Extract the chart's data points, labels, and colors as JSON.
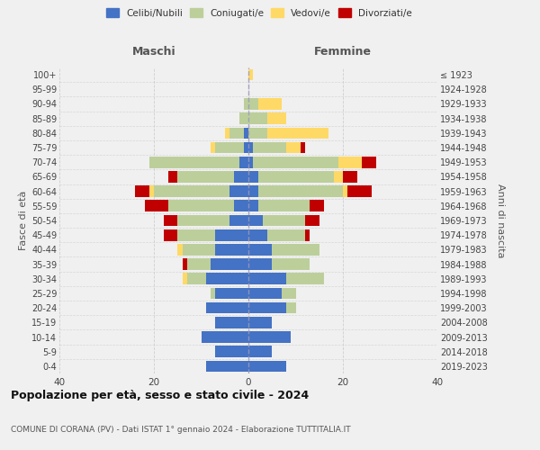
{
  "age_groups": [
    "0-4",
    "5-9",
    "10-14",
    "15-19",
    "20-24",
    "25-29",
    "30-34",
    "35-39",
    "40-44",
    "45-49",
    "50-54",
    "55-59",
    "60-64",
    "65-69",
    "70-74",
    "75-79",
    "80-84",
    "85-89",
    "90-94",
    "95-99",
    "100+"
  ],
  "birth_years": [
    "2019-2023",
    "2014-2018",
    "2009-2013",
    "2004-2008",
    "1999-2003",
    "1994-1998",
    "1989-1993",
    "1984-1988",
    "1979-1983",
    "1974-1978",
    "1969-1973",
    "1964-1968",
    "1959-1963",
    "1954-1958",
    "1949-1953",
    "1944-1948",
    "1939-1943",
    "1934-1938",
    "1929-1933",
    "1924-1928",
    "≤ 1923"
  ],
  "maschi": {
    "celibi": [
      9,
      7,
      10,
      7,
      9,
      7,
      9,
      8,
      7,
      7,
      4,
      3,
      4,
      3,
      2,
      1,
      1,
      0,
      0,
      0,
      0
    ],
    "coniugati": [
      0,
      0,
      0,
      0,
      0,
      1,
      4,
      5,
      7,
      8,
      11,
      14,
      16,
      12,
      19,
      6,
      3,
      2,
      1,
      0,
      0
    ],
    "vedovi": [
      0,
      0,
      0,
      0,
      0,
      0,
      1,
      0,
      1,
      0,
      0,
      0,
      1,
      0,
      0,
      1,
      1,
      0,
      0,
      0,
      0
    ],
    "divorziati": [
      0,
      0,
      0,
      0,
      0,
      0,
      0,
      1,
      0,
      3,
      3,
      5,
      3,
      2,
      0,
      0,
      0,
      0,
      0,
      0,
      0
    ]
  },
  "femmine": {
    "nubili": [
      8,
      5,
      9,
      5,
      8,
      7,
      8,
      5,
      5,
      4,
      3,
      2,
      2,
      2,
      1,
      1,
      0,
      0,
      0,
      0,
      0
    ],
    "coniugate": [
      0,
      0,
      0,
      0,
      2,
      3,
      8,
      8,
      10,
      8,
      9,
      11,
      18,
      16,
      18,
      7,
      4,
      4,
      2,
      0,
      0
    ],
    "vedove": [
      0,
      0,
      0,
      0,
      0,
      0,
      0,
      0,
      0,
      0,
      0,
      0,
      1,
      2,
      5,
      3,
      13,
      4,
      5,
      0,
      1
    ],
    "divorziate": [
      0,
      0,
      0,
      0,
      0,
      0,
      0,
      0,
      0,
      1,
      3,
      3,
      5,
      3,
      3,
      1,
      0,
      0,
      0,
      0,
      0
    ]
  },
  "colors": {
    "celibi_nubili": "#4472C4",
    "coniugati": "#BCCF9B",
    "vedovi": "#FFD966",
    "divorziati": "#C00000"
  },
  "xlim": 40,
  "title": "Popolazione per età, sesso e stato civile - 2024",
  "subtitle": "COMUNE DI CORANA (PV) - Dati ISTAT 1° gennaio 2024 - Elaborazione TUTTITALIA.IT",
  "ylabel_left": "Fasce di età",
  "ylabel_right": "Anni di nascita",
  "xlabel_left": "Maschi",
  "xlabel_right": "Femmine",
  "bg_color": "#f0f0f0",
  "grid_color": "#cccccc"
}
